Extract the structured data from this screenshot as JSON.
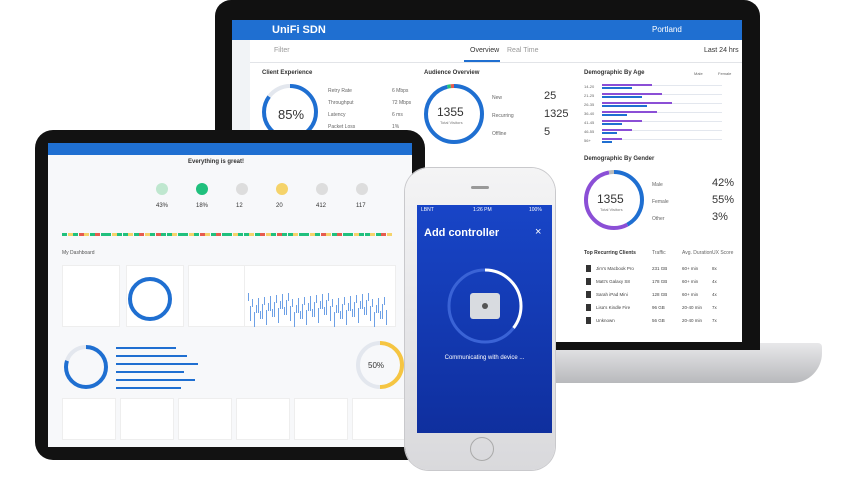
{
  "laptop": {
    "brand": "UniFi SDN",
    "site": "Portland",
    "filter": "Filter",
    "tabs": [
      "Overview",
      "Real Time"
    ],
    "range": "Last 24 hrs",
    "client_experience": {
      "title": "Client Experience",
      "score": "85%",
      "rows": [
        [
          "Retry Rate",
          "6 Mbps"
        ],
        [
          "Throughput",
          "72 Mbps"
        ],
        [
          "Latency",
          "6 ms"
        ],
        [
          "Packet Loss",
          "1%"
        ]
      ]
    },
    "audience": {
      "title": "Audience Overview",
      "total": "1355",
      "total_label": "Total Visitors",
      "rows": [
        [
          "New",
          "25"
        ],
        [
          "Recurring",
          "1325"
        ],
        [
          "Offline",
          "5"
        ]
      ]
    },
    "age": {
      "title": "Demographic By Age",
      "legend": [
        "Male",
        "Female"
      ],
      "groups": [
        "14-20",
        "21-25",
        "26-35",
        "36-40",
        "41-45",
        "46-55",
        "56+"
      ]
    },
    "gender": {
      "title": "Demographic By Gender",
      "total": "1355",
      "total_label": "Total Visitors",
      "rows": [
        [
          "Male",
          "42%"
        ],
        [
          "Female",
          "55%"
        ],
        [
          "Other",
          "3%"
        ]
      ]
    },
    "clients": {
      "title": "Top Recurring Clients",
      "columns": [
        "Traffic",
        "Avg. Duration",
        "UX Score"
      ],
      "rows": [
        [
          "Jim's Macbook Pro",
          "231 GB",
          "60+ min",
          "8x"
        ],
        [
          "Matt's Galaxy S8",
          "178 GB",
          "60+ min",
          "4x"
        ],
        [
          "Sarah iPad Mini",
          "128 GB",
          "60+ min",
          "4x"
        ],
        [
          "Lisa's Kindle Fire",
          "96 GB",
          "20-40 min",
          "7x"
        ],
        [
          "Unknown",
          "56 GB",
          "20-40 min",
          "7x"
        ]
      ]
    }
  },
  "tablet": {
    "status": "Everything is great!",
    "dashboard": "My Dashboard",
    "stats": [
      "43%",
      "18%",
      "12",
      "20",
      "412",
      "117"
    ],
    "gauge": "50%"
  },
  "phone": {
    "carrier": "LBNT",
    "time": "1:26 PM",
    "battery": "100%",
    "title": "Add controller",
    "status": "Communicating with device ..."
  }
}
